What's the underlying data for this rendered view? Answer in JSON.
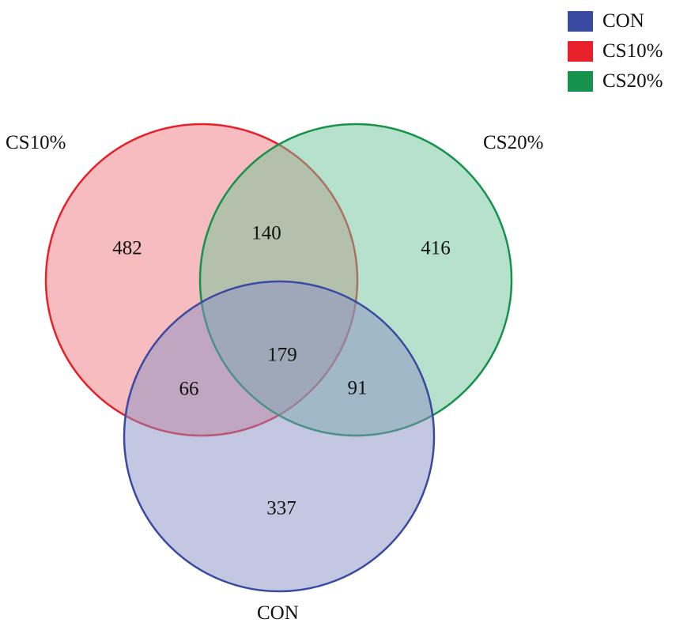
{
  "sets": [
    {
      "id": "con",
      "label": "CON",
      "color": "#3a4aa0",
      "fill": "#8a90c4"
    },
    {
      "id": "cs10",
      "label": "CS10%",
      "color": "#e8202a",
      "fill": "#f07a80"
    },
    {
      "id": "cs20",
      "label": "CS20%",
      "color": "#15924c",
      "fill": "#6dc49a"
    }
  ],
  "legend": {
    "items": [
      {
        "label": "CON",
        "color": "#3a4aa0"
      },
      {
        "label": "CS10%",
        "color": "#e8202a"
      },
      {
        "label": "CS20%",
        "color": "#15924c"
      }
    ]
  },
  "regions": {
    "cs10_only": "482",
    "cs20_only": "416",
    "con_only": "337",
    "cs10_cs20": "140",
    "cs10_con": "66",
    "cs20_con": "91",
    "all_three": "179"
  }
}
